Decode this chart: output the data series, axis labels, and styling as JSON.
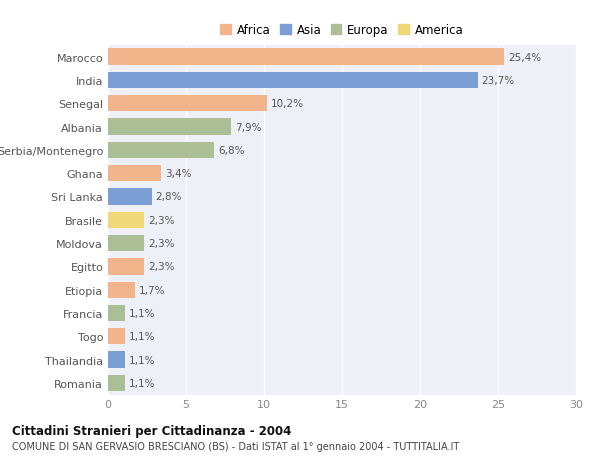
{
  "countries": [
    "Marocco",
    "India",
    "Senegal",
    "Albania",
    "Serbia/Montenegro",
    "Ghana",
    "Sri Lanka",
    "Brasile",
    "Moldova",
    "Egitto",
    "Etiopia",
    "Francia",
    "Togo",
    "Thailandia",
    "Romania"
  ],
  "values": [
    25.4,
    23.7,
    10.2,
    7.9,
    6.8,
    3.4,
    2.8,
    2.3,
    2.3,
    2.3,
    1.7,
    1.1,
    1.1,
    1.1,
    1.1
  ],
  "labels": [
    "25,4%",
    "23,7%",
    "10,2%",
    "7,9%",
    "6,8%",
    "3,4%",
    "2,8%",
    "2,3%",
    "2,3%",
    "2,3%",
    "1,7%",
    "1,1%",
    "1,1%",
    "1,1%",
    "1,1%"
  ],
  "continents": [
    "Africa",
    "Asia",
    "Africa",
    "Europa",
    "Europa",
    "Africa",
    "Asia",
    "America",
    "Europa",
    "Africa",
    "Africa",
    "Europa",
    "Africa",
    "Asia",
    "Europa"
  ],
  "colors": {
    "Africa": "#F2B48A",
    "Asia": "#7B9FD4",
    "Europa": "#ABBE96",
    "America": "#F0D878"
  },
  "legend_order": [
    "Africa",
    "Asia",
    "Europa",
    "America"
  ],
  "title": "Cittadini Stranieri per Cittadinanza - 2004",
  "subtitle": "COMUNE DI SAN GERVASIO BRESCIANO (BS) - Dati ISTAT al 1° gennaio 2004 - TUTTITALIA.IT",
  "xlim": [
    0,
    30
  ],
  "xticks": [
    0,
    5,
    10,
    15,
    20,
    25,
    30
  ],
  "plot_bg": "#EEF0F8",
  "fig_bg": "#ffffff",
  "grid_color": "#ffffff",
  "label_text_color": "#555555",
  "ytick_color": "#555555"
}
